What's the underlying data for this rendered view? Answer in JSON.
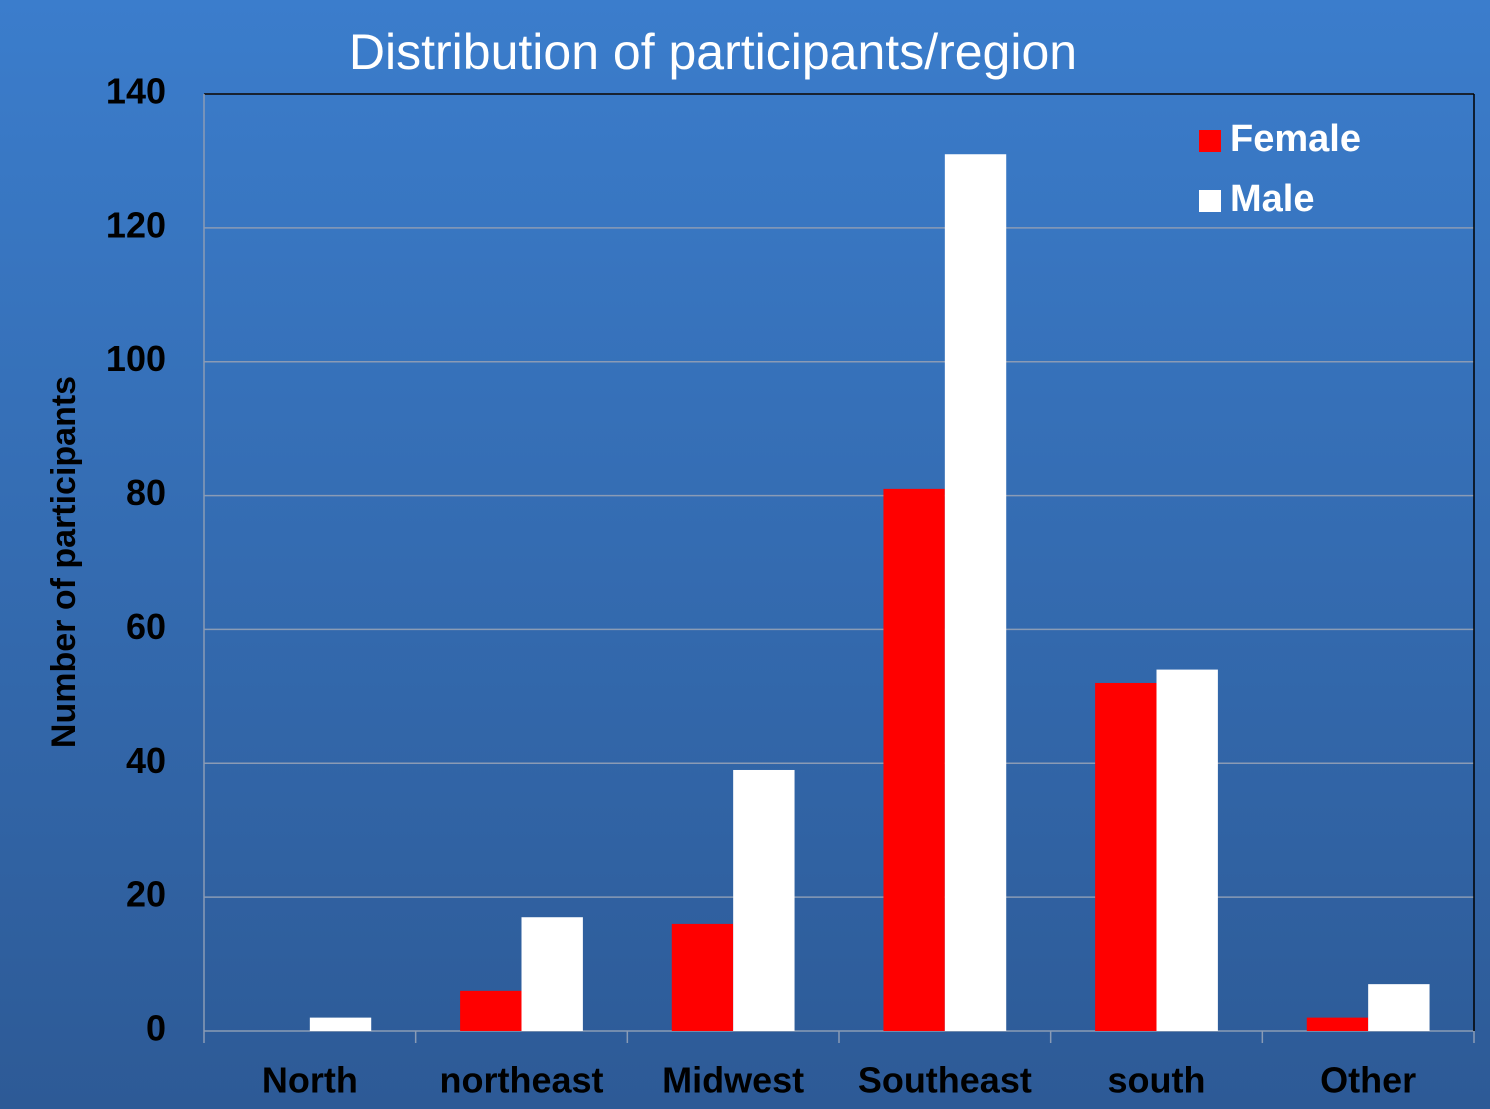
{
  "chart_data": {
    "type": "bar",
    "title": "Distribution of participants/region",
    "y_label": "Number of participants",
    "categories": [
      "North",
      "northeast",
      "Midwest",
      "Southeast",
      "south",
      "Other"
    ],
    "series": [
      {
        "name": "Female",
        "color": "#ff0000",
        "values": [
          0,
          6,
          16,
          81,
          52,
          2
        ]
      },
      {
        "name": "Male",
        "color": "#ffffff",
        "values": [
          2,
          17,
          39,
          131,
          54,
          7
        ]
      }
    ],
    "ylim": [
      0,
      140
    ],
    "yticks": [
      0,
      20,
      40,
      60,
      80,
      100,
      120,
      140
    ],
    "grid": true,
    "legend": "top-right"
  }
}
